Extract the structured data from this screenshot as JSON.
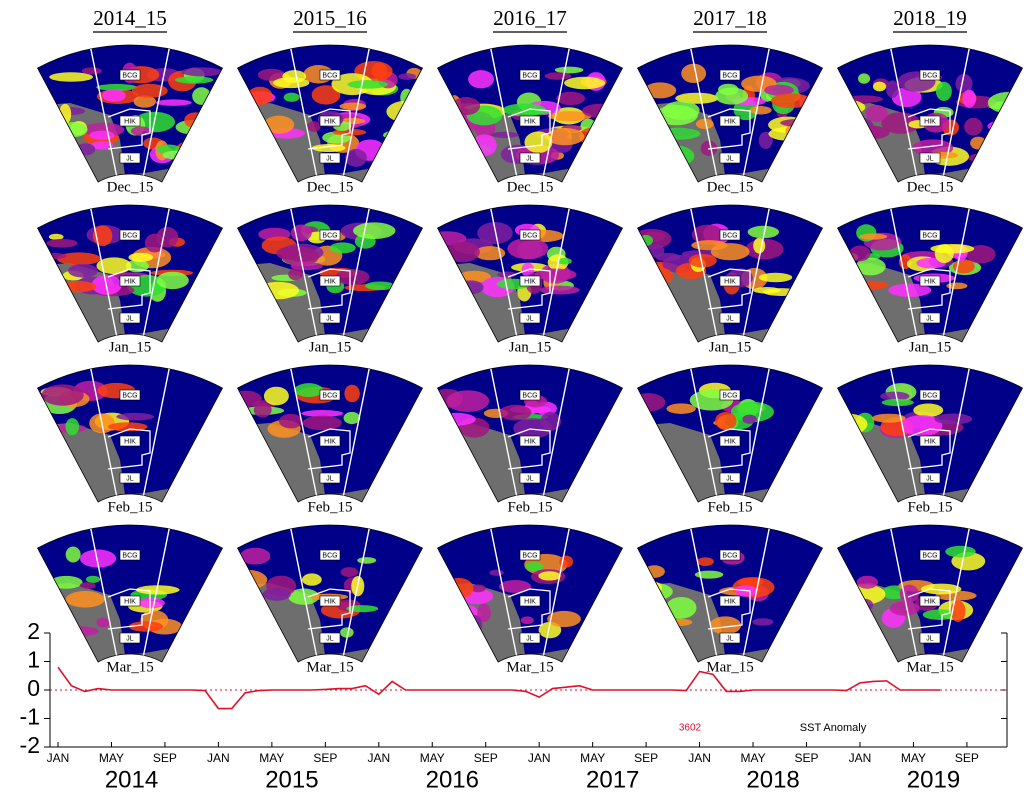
{
  "panels": {
    "columns": [
      "2014_15",
      "2015_16",
      "2016_17",
      "2017_18",
      "2018_19"
    ],
    "rows": [
      "Dec_15",
      "Jan_15",
      "Feb_15",
      "Mar_15"
    ],
    "regions": [
      "BCG",
      "HIK",
      "JL"
    ]
  },
  "chart_data": {
    "type": "line",
    "x": [
      "2014-01",
      "2014-02",
      "2014-03",
      "2014-04",
      "2014-05",
      "2014-06",
      "2014-07",
      "2014-08",
      "2014-09",
      "2014-10",
      "2014-11",
      "2014-12",
      "2015-01",
      "2015-02",
      "2015-03",
      "2015-04",
      "2015-05",
      "2015-06",
      "2015-07",
      "2015-08",
      "2015-09",
      "2015-10",
      "2015-11",
      "2015-12",
      "2016-01",
      "2016-02",
      "2016-03",
      "2016-04",
      "2016-05",
      "2016-06",
      "2016-07",
      "2016-08",
      "2016-09",
      "2016-10",
      "2016-11",
      "2016-12",
      "2017-01",
      "2017-02",
      "2017-03",
      "2017-04",
      "2017-05",
      "2017-06",
      "2017-07",
      "2017-08",
      "2017-09",
      "2017-10",
      "2017-11",
      "2017-12",
      "2018-01",
      "2018-02",
      "2018-03",
      "2018-04",
      "2018-05",
      "2018-06",
      "2018-07",
      "2018-08",
      "2018-09",
      "2018-10",
      "2018-11",
      "2018-12",
      "2019-01",
      "2019-02",
      "2019-03",
      "2019-04",
      "2019-05",
      "2019-06",
      "2019-07"
    ],
    "series": [
      {
        "name": "SST Anomaly",
        "color": "#e0102a",
        "values": [
          0.8,
          0.15,
          -0.05,
          0.05,
          0,
          0,
          0,
          0,
          0,
          0,
          0,
          -0.02,
          -0.65,
          -0.65,
          -0.1,
          -0.02,
          0,
          0,
          0,
          0,
          0.02,
          0.05,
          0.05,
          0.15,
          -0.15,
          0.3,
          0,
          0,
          0,
          0,
          0,
          0,
          0,
          0,
          0,
          -0.05,
          -0.25,
          0.05,
          0.1,
          0.15,
          0,
          0,
          0,
          0,
          0,
          0,
          0,
          -0.02,
          0.65,
          0.55,
          -0.05,
          -0.05,
          0,
          0,
          0,
          0,
          0,
          0,
          0,
          -0.02,
          0.25,
          0.3,
          0.32,
          0,
          0,
          0,
          0
        ]
      }
    ],
    "xlim": [
      "2014-01",
      "2019-12"
    ],
    "xticks": [
      {
        "value": "2014-01",
        "label": "JAN"
      },
      {
        "value": "2014-05",
        "label": "MAY"
      },
      {
        "value": "2014-09",
        "label": "SEP"
      },
      {
        "value": "2015-01",
        "label": "JAN"
      },
      {
        "value": "2015-05",
        "label": "MAY"
      },
      {
        "value": "2015-09",
        "label": "SEP"
      },
      {
        "value": "2016-01",
        "label": "JAN"
      },
      {
        "value": "2016-05",
        "label": "MAY"
      },
      {
        "value": "2016-09",
        "label": "SEP"
      },
      {
        "value": "2017-01",
        "label": "JAN"
      },
      {
        "value": "2017-05",
        "label": "MAY"
      },
      {
        "value": "2017-09",
        "label": "SEP"
      },
      {
        "value": "2018-01",
        "label": "JAN"
      },
      {
        "value": "2018-05",
        "label": "MAY"
      },
      {
        "value": "2018-09",
        "label": "SEP"
      },
      {
        "value": "2019-01",
        "label": "JAN"
      },
      {
        "value": "2019-05",
        "label": "MAY"
      },
      {
        "value": "2019-09",
        "label": "SEP"
      }
    ],
    "years": [
      2014,
      2015,
      2016,
      2017,
      2018,
      2019
    ],
    "ylim": [
      -2,
      2
    ],
    "yticks": [
      -2,
      -1,
      0,
      1,
      2
    ],
    "annotation": "3602"
  }
}
